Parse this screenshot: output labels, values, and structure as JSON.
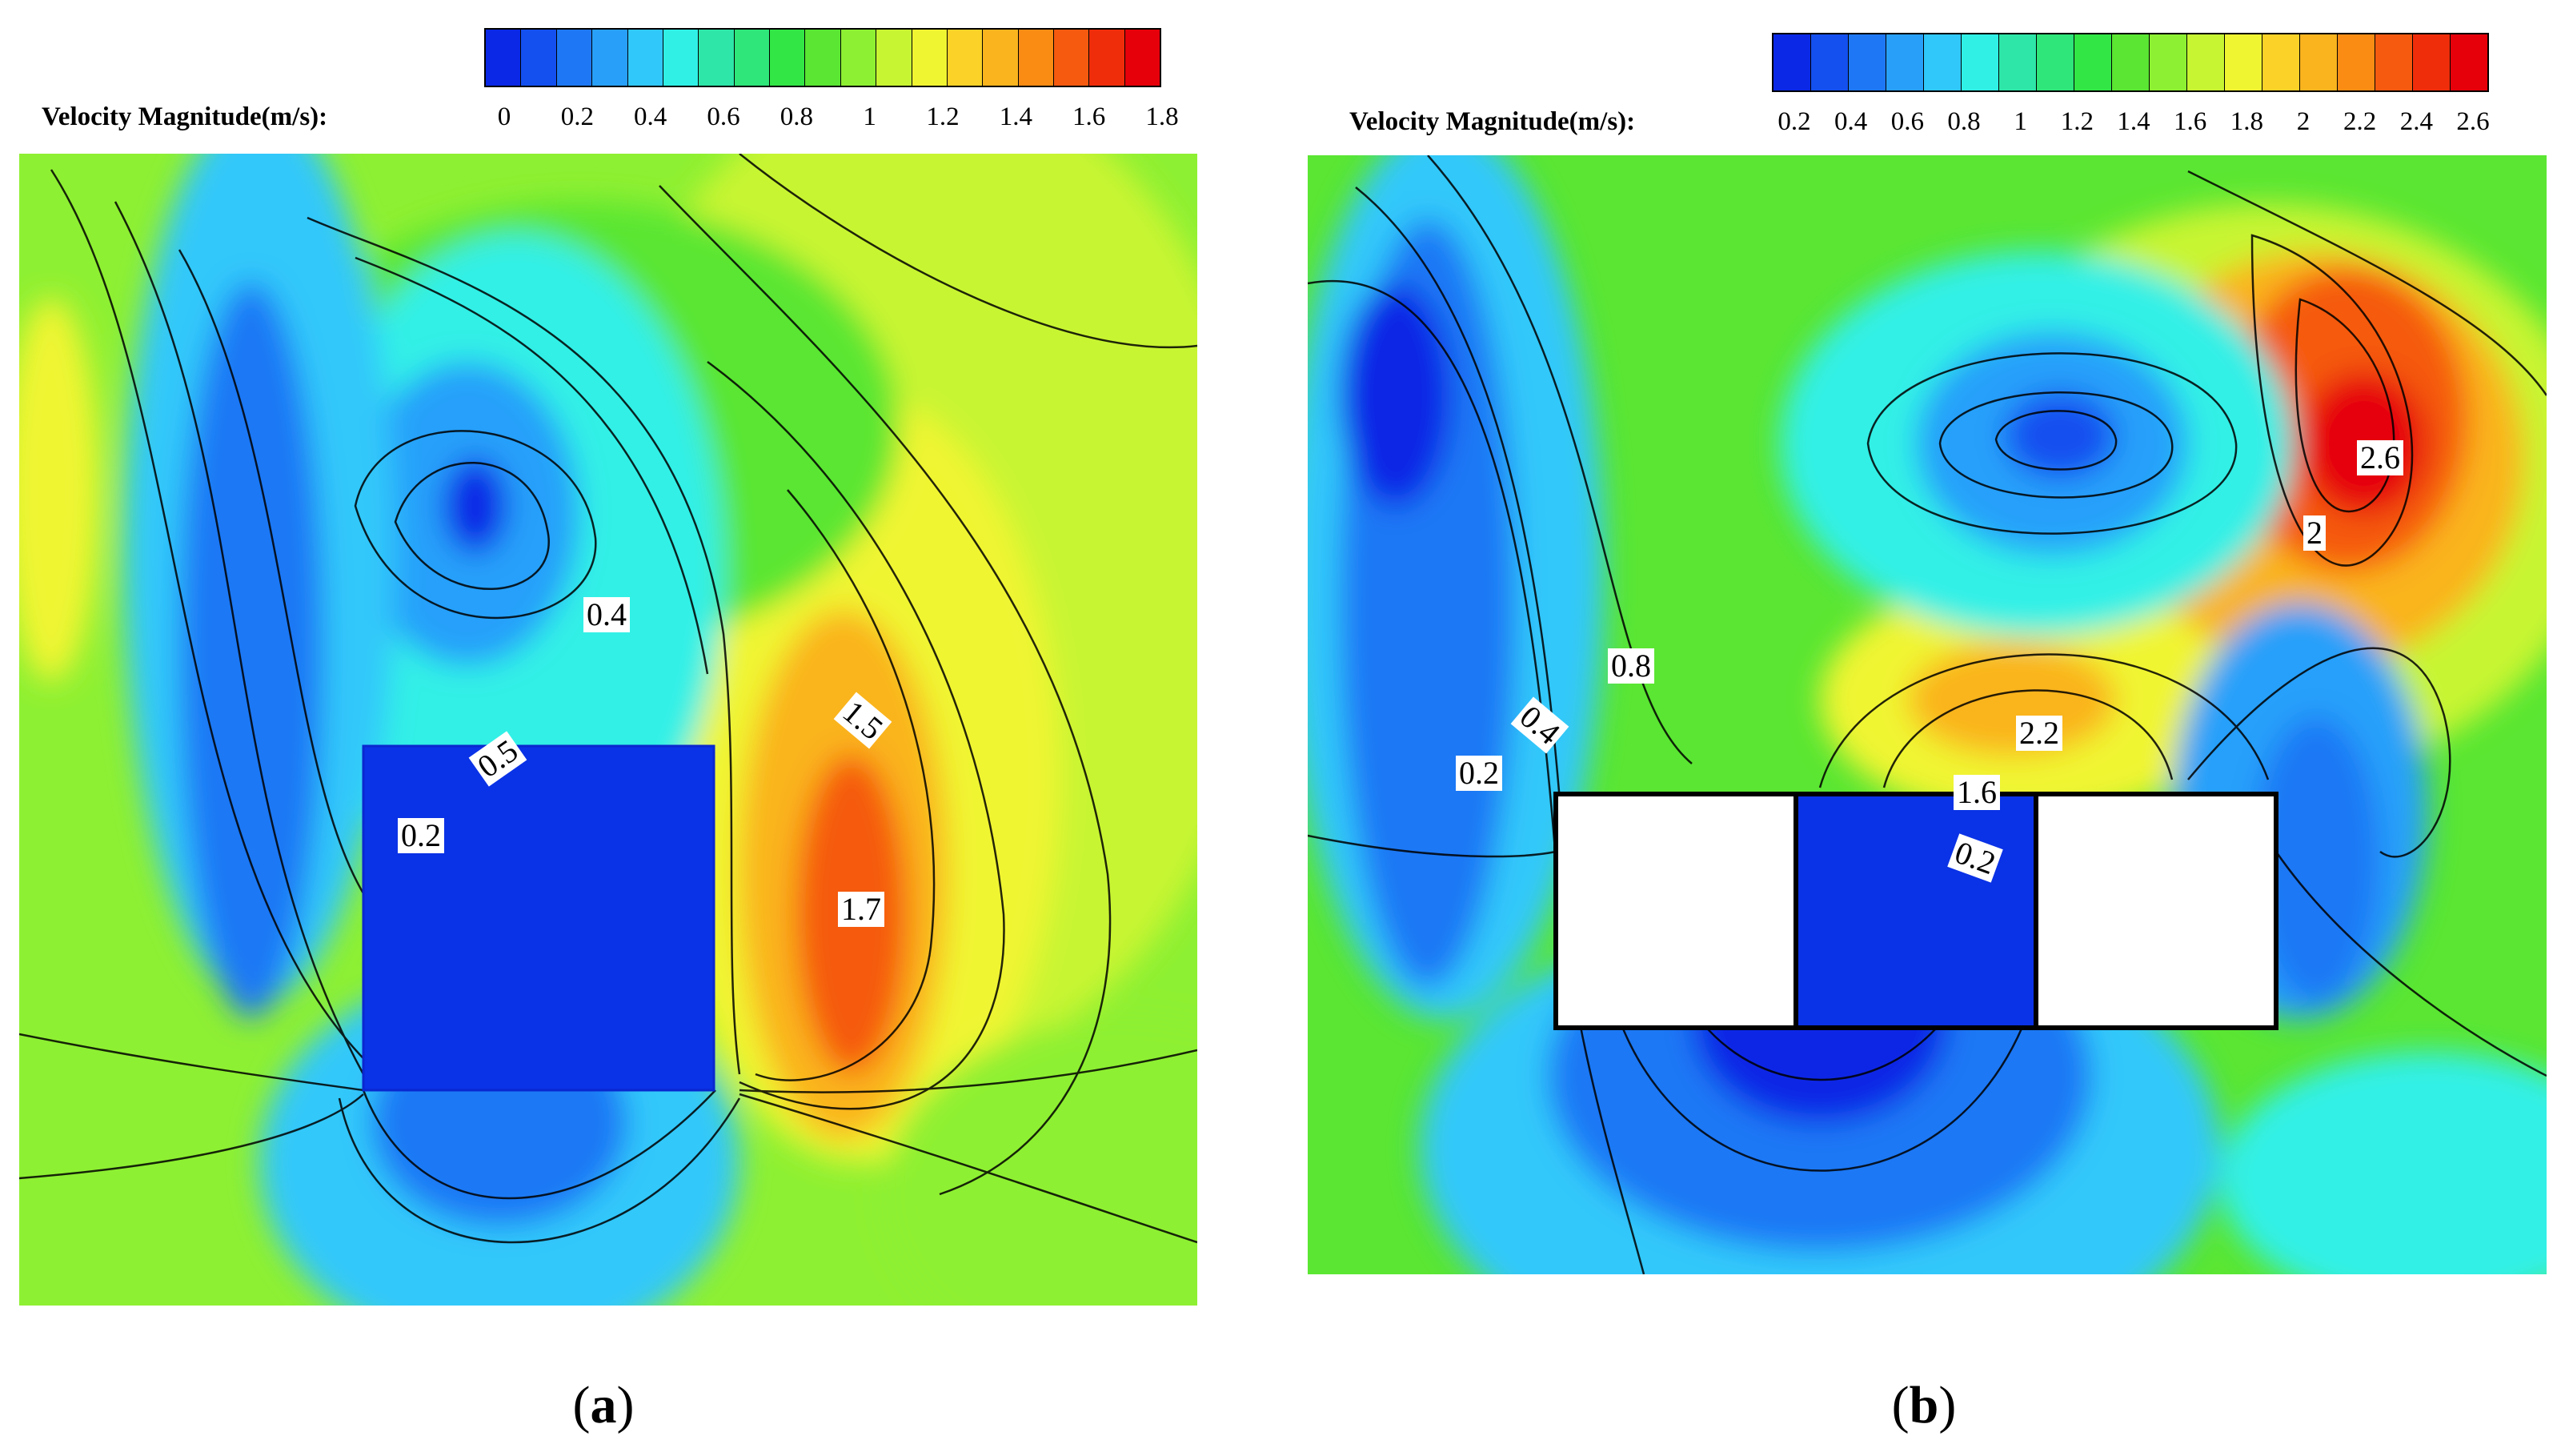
{
  "chart_data": [
    {
      "type": "contour",
      "legend_title": "Velocity Magnitude(m/s):",
      "colorbar_ticks": [
        "0",
        "0.2",
        "0.4",
        "0.6",
        "0.8",
        "1",
        "1.2",
        "1.4",
        "1.6",
        "1.8"
      ],
      "colorbar_range": [
        0,
        1.8
      ],
      "colorbar_colors": [
        "#0a28e6",
        "#1450f0",
        "#1e78f5",
        "#28a0fa",
        "#30c8fa",
        "#30f0e6",
        "#2ee6a8",
        "#2ee67a",
        "#32e646",
        "#5ae632",
        "#8ef032",
        "#c8f532",
        "#f0f532",
        "#fad228",
        "#fab41e",
        "#fa8c14",
        "#f55a0f",
        "#f02d0a",
        "#e6000a"
      ],
      "contour_labels": [
        "0.4",
        "0.5",
        "0.2",
        "1.5",
        "1.7"
      ],
      "caption": "(a)",
      "caption_parts": {
        "open": "(",
        "letter": "a",
        "close": ")"
      }
    },
    {
      "type": "contour",
      "legend_title": "Velocity Magnitude(m/s):",
      "colorbar_ticks": [
        "0.2",
        "0.4",
        "0.6",
        "0.8",
        "1",
        "1.2",
        "1.4",
        "1.6",
        "1.8",
        "2",
        "2.2",
        "2.4",
        "2.6"
      ],
      "colorbar_range": [
        0.1,
        2.7
      ],
      "colorbar_colors": [
        "#0a28e6",
        "#1450f0",
        "#1e78f5",
        "#28a0fa",
        "#30c8fa",
        "#30f0e6",
        "#2ee6a8",
        "#2ee67a",
        "#32e646",
        "#5ae632",
        "#8ef032",
        "#c8f532",
        "#f0f532",
        "#fad228",
        "#fab41e",
        "#fa8c14",
        "#f55a0f",
        "#f02d0a",
        "#e6000a"
      ],
      "contour_labels": [
        "2.6",
        "2",
        "0.8",
        "0.4",
        "0.2",
        "2.2",
        "1.6",
        "0.2"
      ],
      "caption": "(b)",
      "caption_parts": {
        "open": "(",
        "letter": "b",
        "close": ")"
      }
    }
  ]
}
